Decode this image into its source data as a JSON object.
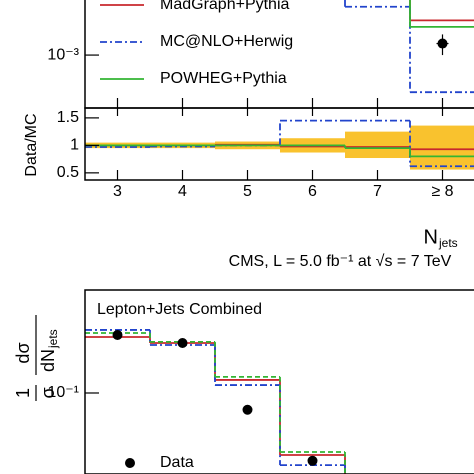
{
  "chart_data": [
    {
      "type": "step",
      "ylog": true,
      "legend": "upper left",
      "x": [
        3,
        4,
        5,
        6,
        7,
        8
      ],
      "xlim": [
        2.5,
        8.5
      ],
      "ylim": [
        0.0003,
        0.0035
      ],
      "yticks": [
        {
          "value": 0.001,
          "label": "10⁻³"
        }
      ],
      "series": [
        {
          "name": "MadGraph+Pythia",
          "color": "#c8282d",
          "values": [
            null,
            null,
            null,
            null,
            null,
            0.0022
          ]
        },
        {
          "name": "MC@NLO+Herwig",
          "color": "#2244cc",
          "style": "dashdot",
          "values": [
            null,
            null,
            null,
            null,
            0.003,
            0.00043
          ]
        },
        {
          "name": "POWHEG+Pythia",
          "color": "#33b533",
          "values": [
            null,
            null,
            null,
            null,
            null,
            0.0019
          ]
        },
        {
          "color": "#000000",
          "marker": "circle",
          "values": [
            null,
            null,
            null,
            null,
            null,
            0.0013
          ],
          "errors": [
            null,
            null,
            null,
            null,
            null,
            0.0003
          ]
        }
      ]
    },
    {
      "type": "step",
      "ylabel": "Data/MC",
      "x": [
        3,
        4,
        5,
        6,
        7,
        8
      ],
      "xlim": [
        2.5,
        8.5
      ],
      "xticks": [
        3,
        4,
        5,
        6,
        7,
        {
          "value": 8,
          "label": "≥ 8"
        }
      ],
      "xlabel": {
        "text": "N",
        "sub": "jets"
      },
      "ylim": [
        0.37,
        1.68
      ],
      "yticks": [
        0.5,
        1,
        1.5
      ],
      "band": {
        "color": "#f9c22e",
        "lower": [
          0.95,
          0.95,
          0.93,
          0.87,
          0.77,
          0.56
        ],
        "upper": [
          1.05,
          1.05,
          1.07,
          1.13,
          1.25,
          1.36
        ]
      },
      "series": [
        {
          "color": "#c8282d",
          "values": [
            1.0,
            1.0,
            1.01,
            0.98,
            0.97,
            0.93
          ]
        },
        {
          "color": "#2244cc",
          "style": "dashdot",
          "values": [
            0.97,
            0.98,
            1.0,
            1.45,
            1.45,
            0.62
          ]
        },
        {
          "color": "#33b533",
          "values": [
            1.0,
            1.0,
            1.0,
            1.0,
            0.95,
            0.8
          ]
        }
      ]
    },
    {
      "type": "step",
      "ylog": true,
      "legend": "lower left",
      "title": "CMS, L = 5.0 fb⁻¹ at √s = 7 TeV",
      "annotation": "Lepton+Jets Combined",
      "ylabel": {
        "num1": "1",
        "den1": "σ",
        "num2": "dσ",
        "den2": "dN",
        "den2_sub": "jets"
      },
      "x": [
        3,
        4,
        5,
        6,
        7,
        8
      ],
      "xlim": [
        2.5,
        8.5
      ],
      "ylim": [
        0.0155,
        1.07
      ],
      "yticks": [
        {
          "value": 0.1,
          "label": "10⁻¹"
        }
      ],
      "series": [
        {
          "color": "#c8282d",
          "values": [
            0.363,
            0.316,
            0.135,
            0.024,
            null,
            null
          ]
        },
        {
          "color": "#2244cc",
          "style": "dashdot",
          "values": [
            0.427,
            0.302,
            0.12,
            0.019,
            null,
            null
          ]
        },
        {
          "color": "#33b533",
          "style": "dashed",
          "values": [
            0.398,
            0.324,
            0.145,
            0.0257,
            null,
            null
          ]
        },
        {
          "name": "Data",
          "color": "#000000",
          "marker": "circle",
          "values": [
            0.38,
            0.316,
            0.068,
            0.021,
            null,
            null
          ]
        }
      ]
    }
  ]
}
